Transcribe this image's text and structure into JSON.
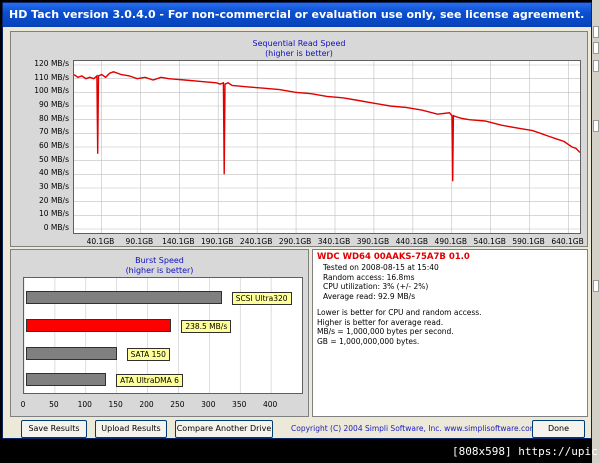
{
  "window": {
    "title": "HD Tach version 3.0.4.0  - For non-commercial or evaluation use only, see license agreement."
  },
  "seq_chart": {
    "title": "Sequential Read Speed",
    "subtitle": "(higher is better)",
    "y_ticks": [
      "120 MB/s",
      "110 MB/s",
      "100 MB/s",
      "90 MB/s",
      "80 MB/s",
      "70 MB/s",
      "60 MB/s",
      "50 MB/s",
      "40 MB/s",
      "30 MB/s",
      "20 MB/s",
      "10 MB/s",
      "0 MB/s"
    ],
    "x_ticks": [
      "40.1GB",
      "90.1GB",
      "140.1GB",
      "190.1GB",
      "240.1GB",
      "290.1GB",
      "340.1GB",
      "390.1GB",
      "440.1GB",
      "490.1GB",
      "540.1GB",
      "590.1GB",
      "640.1GB"
    ],
    "line_color": "#e00000"
  },
  "chart_data": [
    {
      "type": "line",
      "title": "Sequential Read Speed",
      "subtitle": "(higher is better)",
      "xlabel": "",
      "ylabel": "",
      "ylim": [
        0,
        120
      ],
      "xlim": [
        0,
        640.1
      ],
      "grid": true,
      "series": [
        {
          "x": [
            0,
            5,
            10,
            15,
            20,
            25,
            29,
            30,
            31,
            35,
            40,
            45,
            50,
            60,
            70,
            80,
            90,
            100,
            110,
            120,
            140,
            160,
            180,
            185,
            189,
            190,
            191,
            195,
            200,
            220,
            240,
            260,
            280,
            300,
            320,
            340,
            360,
            380,
            400,
            420,
            440,
            460,
            475,
            478,
            479,
            480,
            484,
            490,
            500,
            520,
            540,
            560,
            580,
            590,
            600,
            610,
            620,
            630,
            635,
            640.1
          ],
          "y": [
            113,
            111,
            112,
            110,
            111,
            110,
            112,
            55,
            112,
            113,
            111,
            114,
            115,
            113,
            112,
            110,
            111,
            109,
            111,
            110,
            109,
            108,
            107,
            106,
            107,
            40,
            106,
            107,
            105,
            104,
            103,
            102,
            100,
            99,
            97,
            96,
            94,
            92,
            90,
            89,
            87,
            84,
            85,
            83,
            35,
            83,
            82,
            81,
            80,
            79,
            76,
            74,
            72,
            70,
            68,
            66,
            64,
            60,
            59,
            56
          ]
        }
      ]
    },
    {
      "type": "bar",
      "title": "Burst Speed",
      "subtitle": "(higher is better)",
      "orientation": "horizontal",
      "categories": [
        "SCSI Ultra320",
        "Test drive",
        "SATA 150",
        "ATA UltraDMA 6"
      ],
      "values": [
        320,
        238.5,
        150,
        133
      ],
      "xlim": [
        0,
        450
      ],
      "x_ticks": [
        "0",
        "50",
        "100",
        "150",
        "200",
        "250",
        "300",
        "350",
        "400"
      ],
      "labels": [
        "SCSI Ultra320",
        "238.5 MB/s",
        "SATA 150",
        "ATA UltraDMA 6"
      ],
      "colors": [
        "#808080",
        "#ff0000",
        "#808080",
        "#808080"
      ]
    }
  ],
  "info": {
    "drive": "WDC WD64 00AAKS-75A7B 01.0",
    "lines": [
      "Tested on 2008-08-15 at 15:40",
      "Random access: 16.8ms",
      "CPU utilization: 3% (+/- 2%)",
      "Average read: 92.9 MB/s"
    ],
    "notes": [
      "Lower is better for CPU and random access.",
      "Higher is better for average read.",
      "MB/s = 1,000,000 bytes per second.",
      "GB = 1,000,000,000 bytes."
    ]
  },
  "buttons": {
    "save": "Save Results",
    "upload": "Upload Results",
    "compare": "Compare Another Drive",
    "done": "Done"
  },
  "footer": {
    "copyright": "Copyright (C) 2004 Simpli Software, Inc. www.simplisoftware.com"
  },
  "watermark": "[808x598] https://upic.me/"
}
